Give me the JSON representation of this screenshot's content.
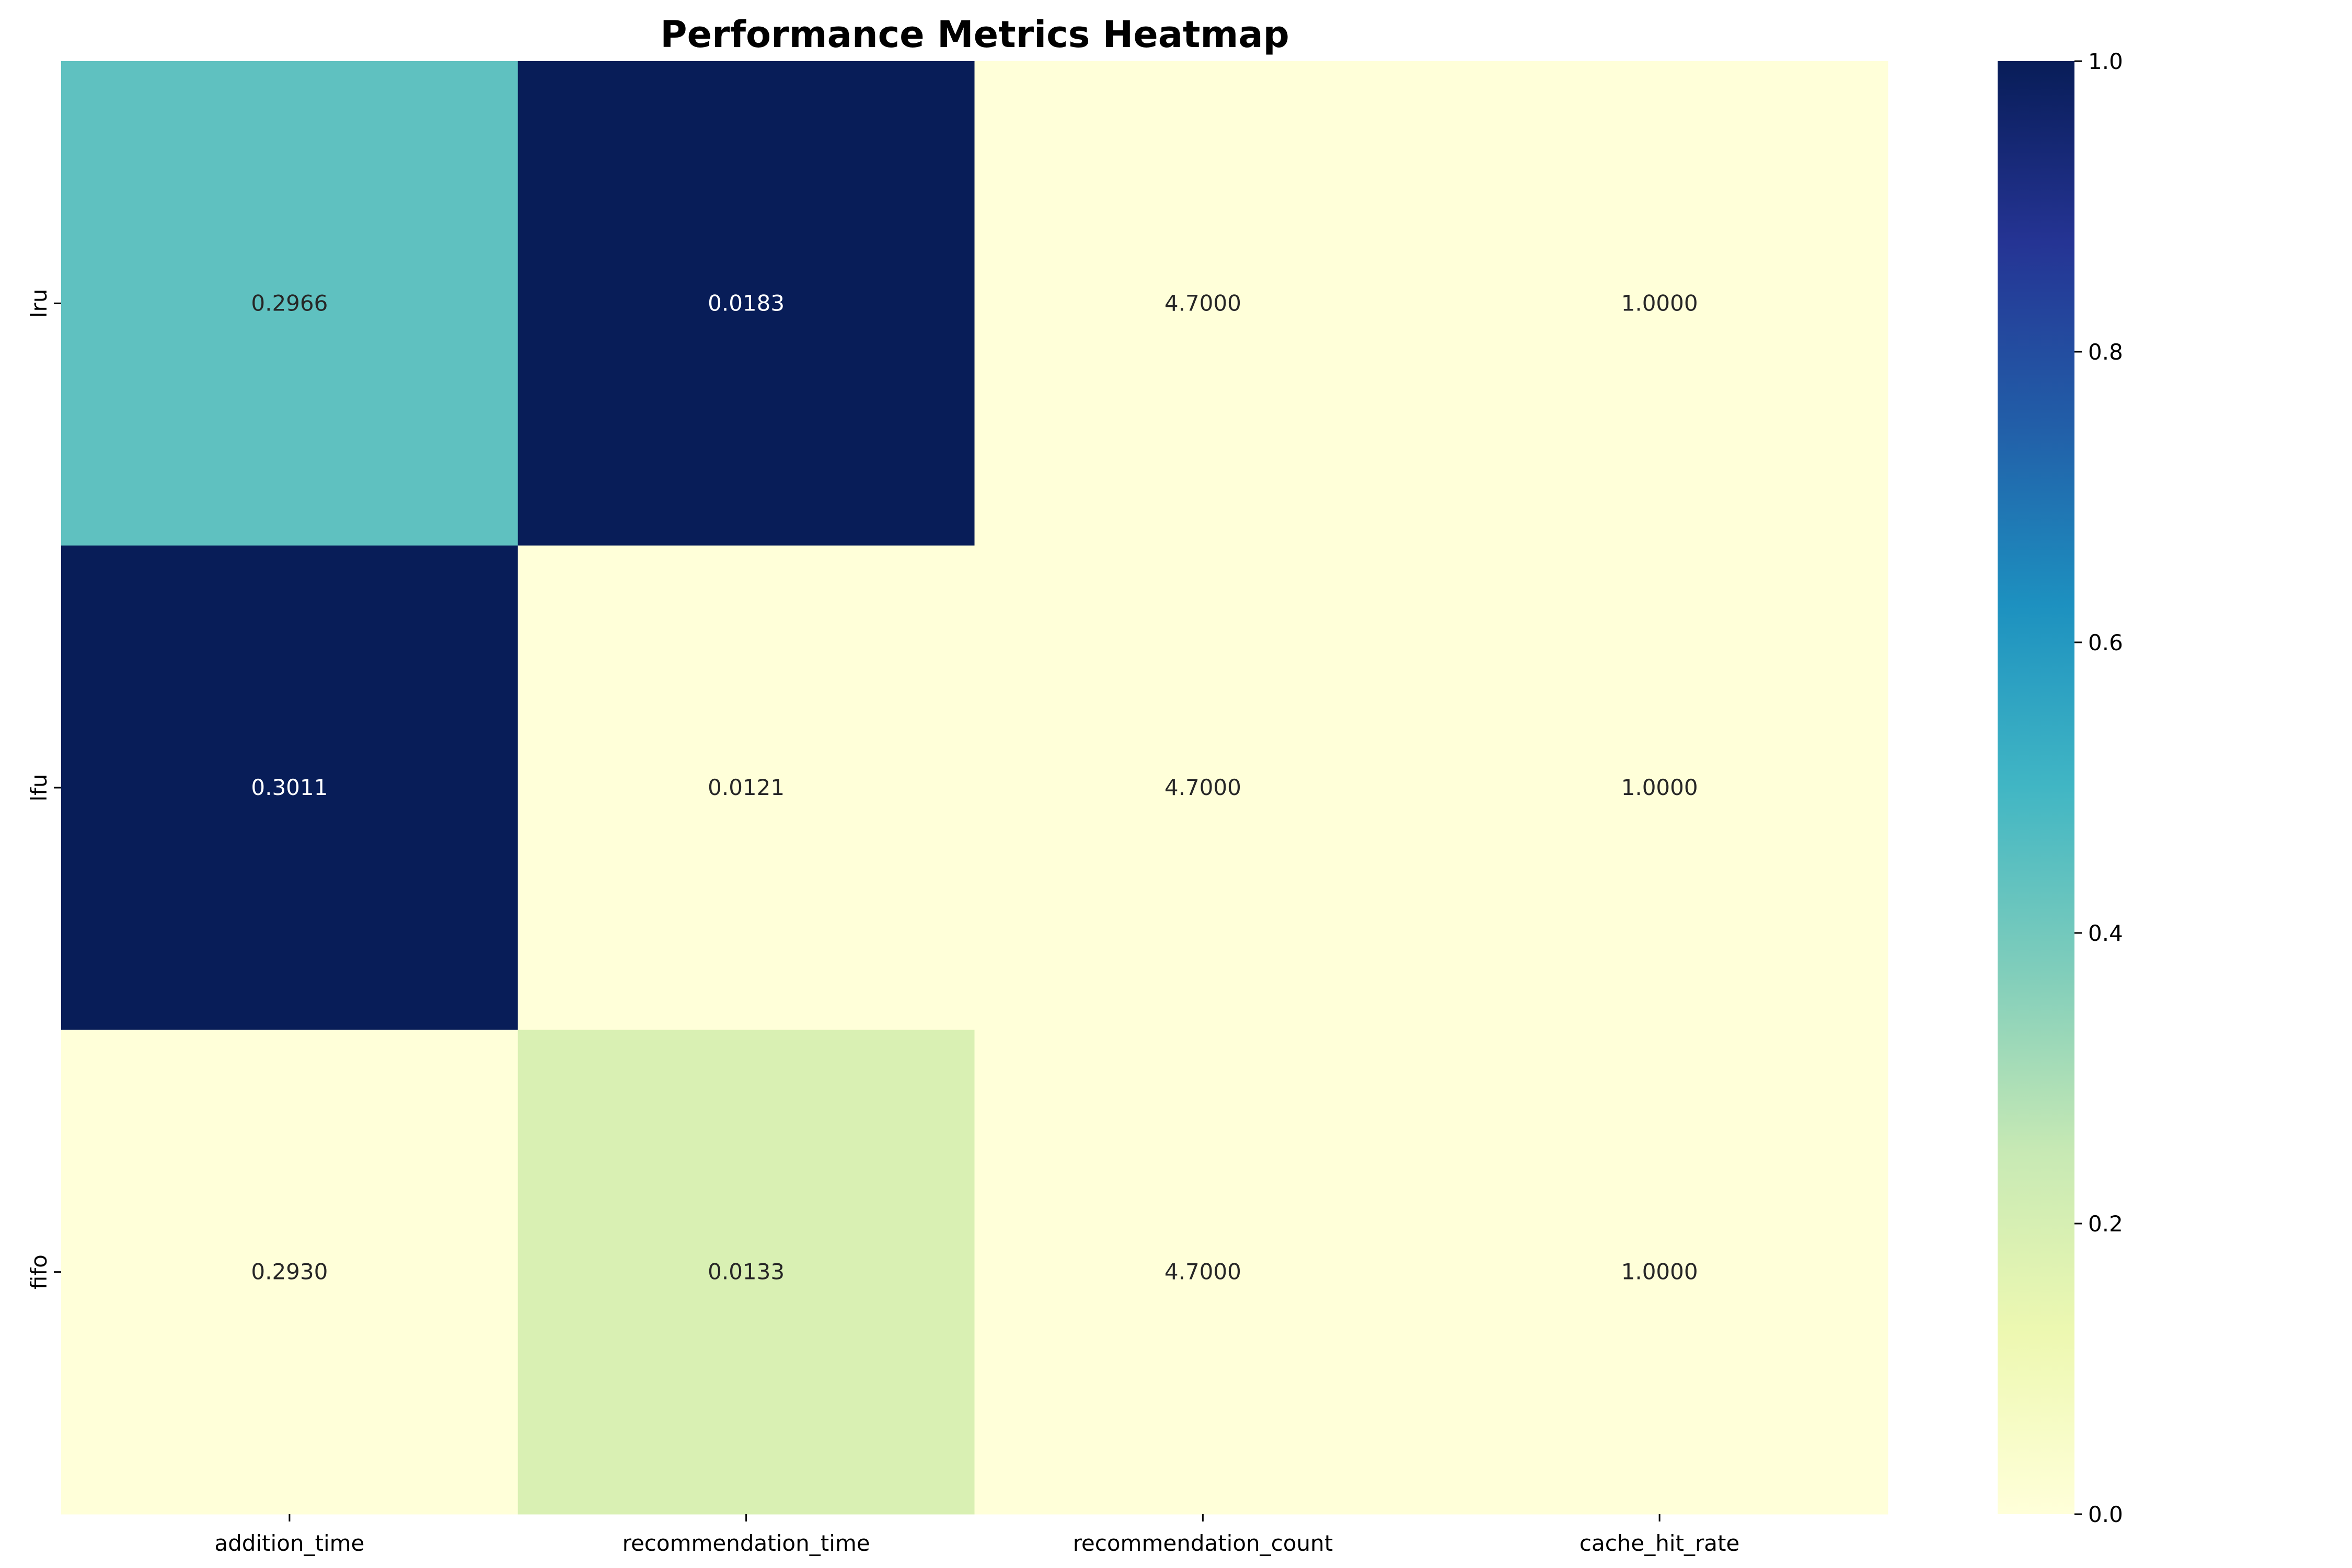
{
  "chart_data": {
    "type": "heatmap",
    "title": "Performance Metrics Heatmap",
    "rows": [
      "lru",
      "lfu",
      "fifo"
    ],
    "columns": [
      "addition_time",
      "recommendation_time",
      "recommendation_count",
      "cache_hit_rate"
    ],
    "annotations": [
      [
        "0.2966",
        "0.0183",
        "4.7000",
        "1.0000"
      ],
      [
        "0.3011",
        "0.0121",
        "4.7000",
        "1.0000"
      ],
      [
        "0.2930",
        "0.0133",
        "4.7000",
        "1.0000"
      ]
    ],
    "color_values": [
      [
        0.44,
        1.0,
        0.0,
        0.0
      ],
      [
        1.0,
        0.0,
        0.0,
        0.0
      ],
      [
        0.0,
        0.19,
        0.0,
        0.0
      ]
    ],
    "colormap": "YlGnBu",
    "color_range": [
      0,
      1
    ],
    "colorbar_ticks": [
      "0.0",
      "0.2",
      "0.4",
      "0.6",
      "0.8",
      "1.0"
    ],
    "legend_position": "right"
  }
}
